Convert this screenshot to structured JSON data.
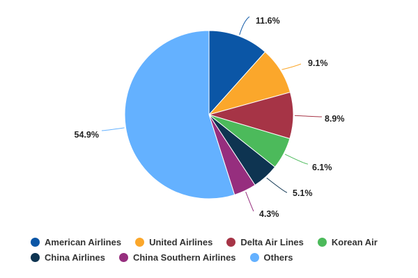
{
  "chart_data": {
    "type": "pie",
    "categories": [
      "American Airlines",
      "United Airlines",
      "Delta Air Lines",
      "Korean Air",
      "China Airlines",
      "China Southern Airlines",
      "Others"
    ],
    "values": [
      11.6,
      9.1,
      8.9,
      6.1,
      5.1,
      4.3,
      54.9
    ],
    "labels": [
      "11.6%",
      "9.1%",
      "8.9%",
      "6.1%",
      "5.1%",
      "4.3%",
      "54.9%"
    ],
    "colors": [
      "#0b56a6",
      "#fba72b",
      "#a63446",
      "#4cba5b",
      "#0e3451",
      "#962e7e",
      "#64b1ff"
    ],
    "legend_placement": "bottom"
  }
}
